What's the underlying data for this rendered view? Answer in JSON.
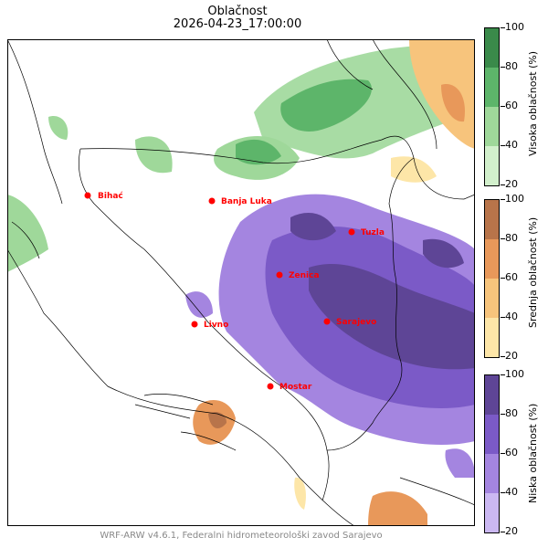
{
  "title": "Oblačnost",
  "timestamp": "2026-04-23_17:00:00",
  "footer": "WRF-ARW v4.6.1, Federalni hidrometeorološki zavod Sarajevo",
  "cities": [
    {
      "name": "Bihać"
    },
    {
      "name": "Banja Luka"
    },
    {
      "name": "Tuzla"
    },
    {
      "name": "Zenica"
    },
    {
      "name": "Livno"
    },
    {
      "name": "Sarajevo"
    },
    {
      "name": "Mostar"
    }
  ],
  "colorbars": [
    {
      "label": "Visoka oblačnost (%)",
      "ticks": [
        "100",
        "80",
        "60",
        "40",
        "20"
      ],
      "colors": [
        "#3a8a4a",
        "#5db56a",
        "#9fd89a",
        "#d2f0cc"
      ]
    },
    {
      "label": "Srednja oblačnost (%)",
      "ticks": [
        "100",
        "80",
        "60",
        "40",
        "20"
      ],
      "colors": [
        "#b8744a",
        "#e8985a",
        "#f7c47c",
        "#fde6a8"
      ]
    },
    {
      "label": "Niska oblačnost (%)",
      "ticks": [
        "100",
        "80",
        "60",
        "40",
        "20"
      ],
      "colors": [
        "#5e4596",
        "#7b5ac7",
        "#a485e0",
        "#cbb8f2"
      ]
    }
  ]
}
